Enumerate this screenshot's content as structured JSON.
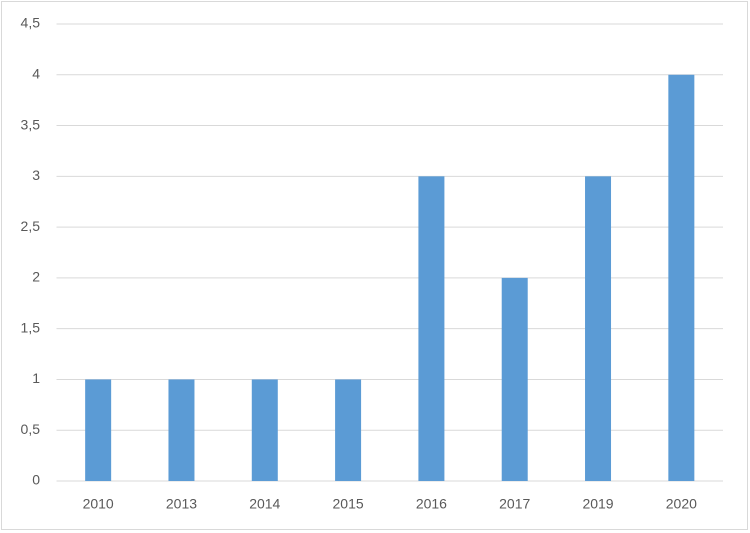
{
  "chart_data": {
    "type": "bar",
    "categories": [
      "2010",
      "2013",
      "2014",
      "2015",
      "2016",
      "2017",
      "2019",
      "2020"
    ],
    "values": [
      1,
      1,
      1,
      1,
      3,
      2,
      3,
      4
    ],
    "color": "#5b9bd5",
    "ylim": [
      0,
      4.5
    ],
    "yticks": [
      0,
      {
        "value": 0.5,
        "label": "0,5"
      },
      1,
      {
        "value": 1.5,
        "label": "1,5"
      },
      2,
      {
        "value": 2.5,
        "label": "2,5"
      },
      3,
      {
        "value": 3.5,
        "label": "3,5"
      },
      4,
      {
        "value": 4.5,
        "label": "4,5"
      }
    ],
    "grid": true
  }
}
